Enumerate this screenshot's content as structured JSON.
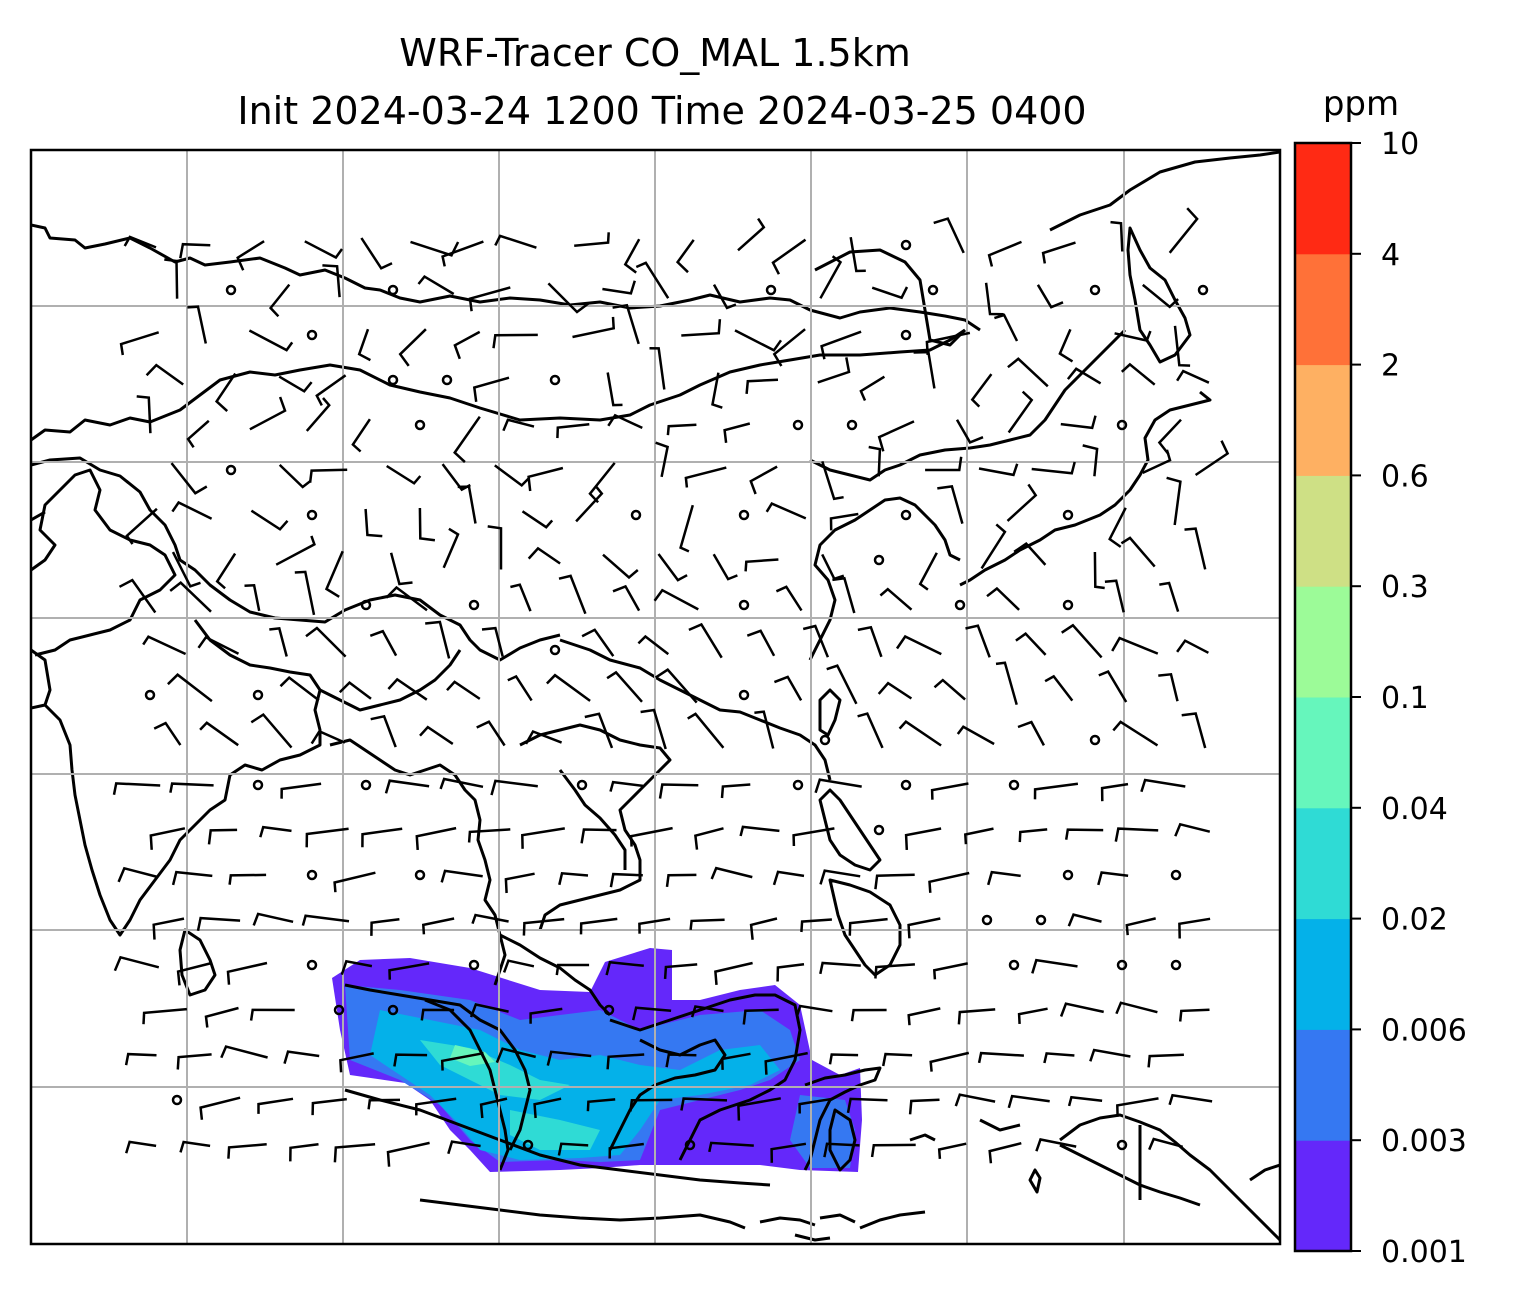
{
  "title": {
    "line1": "WRF-Tracer CO_MAL 1.5km",
    "line2": "Init 2024-03-24 1200 Time 2024-03-25 0400"
  },
  "colorbar": {
    "unit": "ppm",
    "levels": [
      "0.001",
      "0.003",
      "0.006",
      "0.02",
      "0.04",
      "0.1",
      "0.3",
      "0.6",
      "2",
      "4",
      "10"
    ],
    "colors": [
      "#6428fa",
      "#3578f2",
      "#04b1e9",
      "#2fdbd5",
      "#66f6bc",
      "#9cfb98",
      "#cee085",
      "#feb062",
      "#ff7138",
      "#ff2a14"
    ]
  },
  "map": {
    "grid": true,
    "coastline_color": "#000000",
    "wind_barbs": true,
    "tracer_field": "CO_MAL",
    "resolution": "1.5km"
  }
}
